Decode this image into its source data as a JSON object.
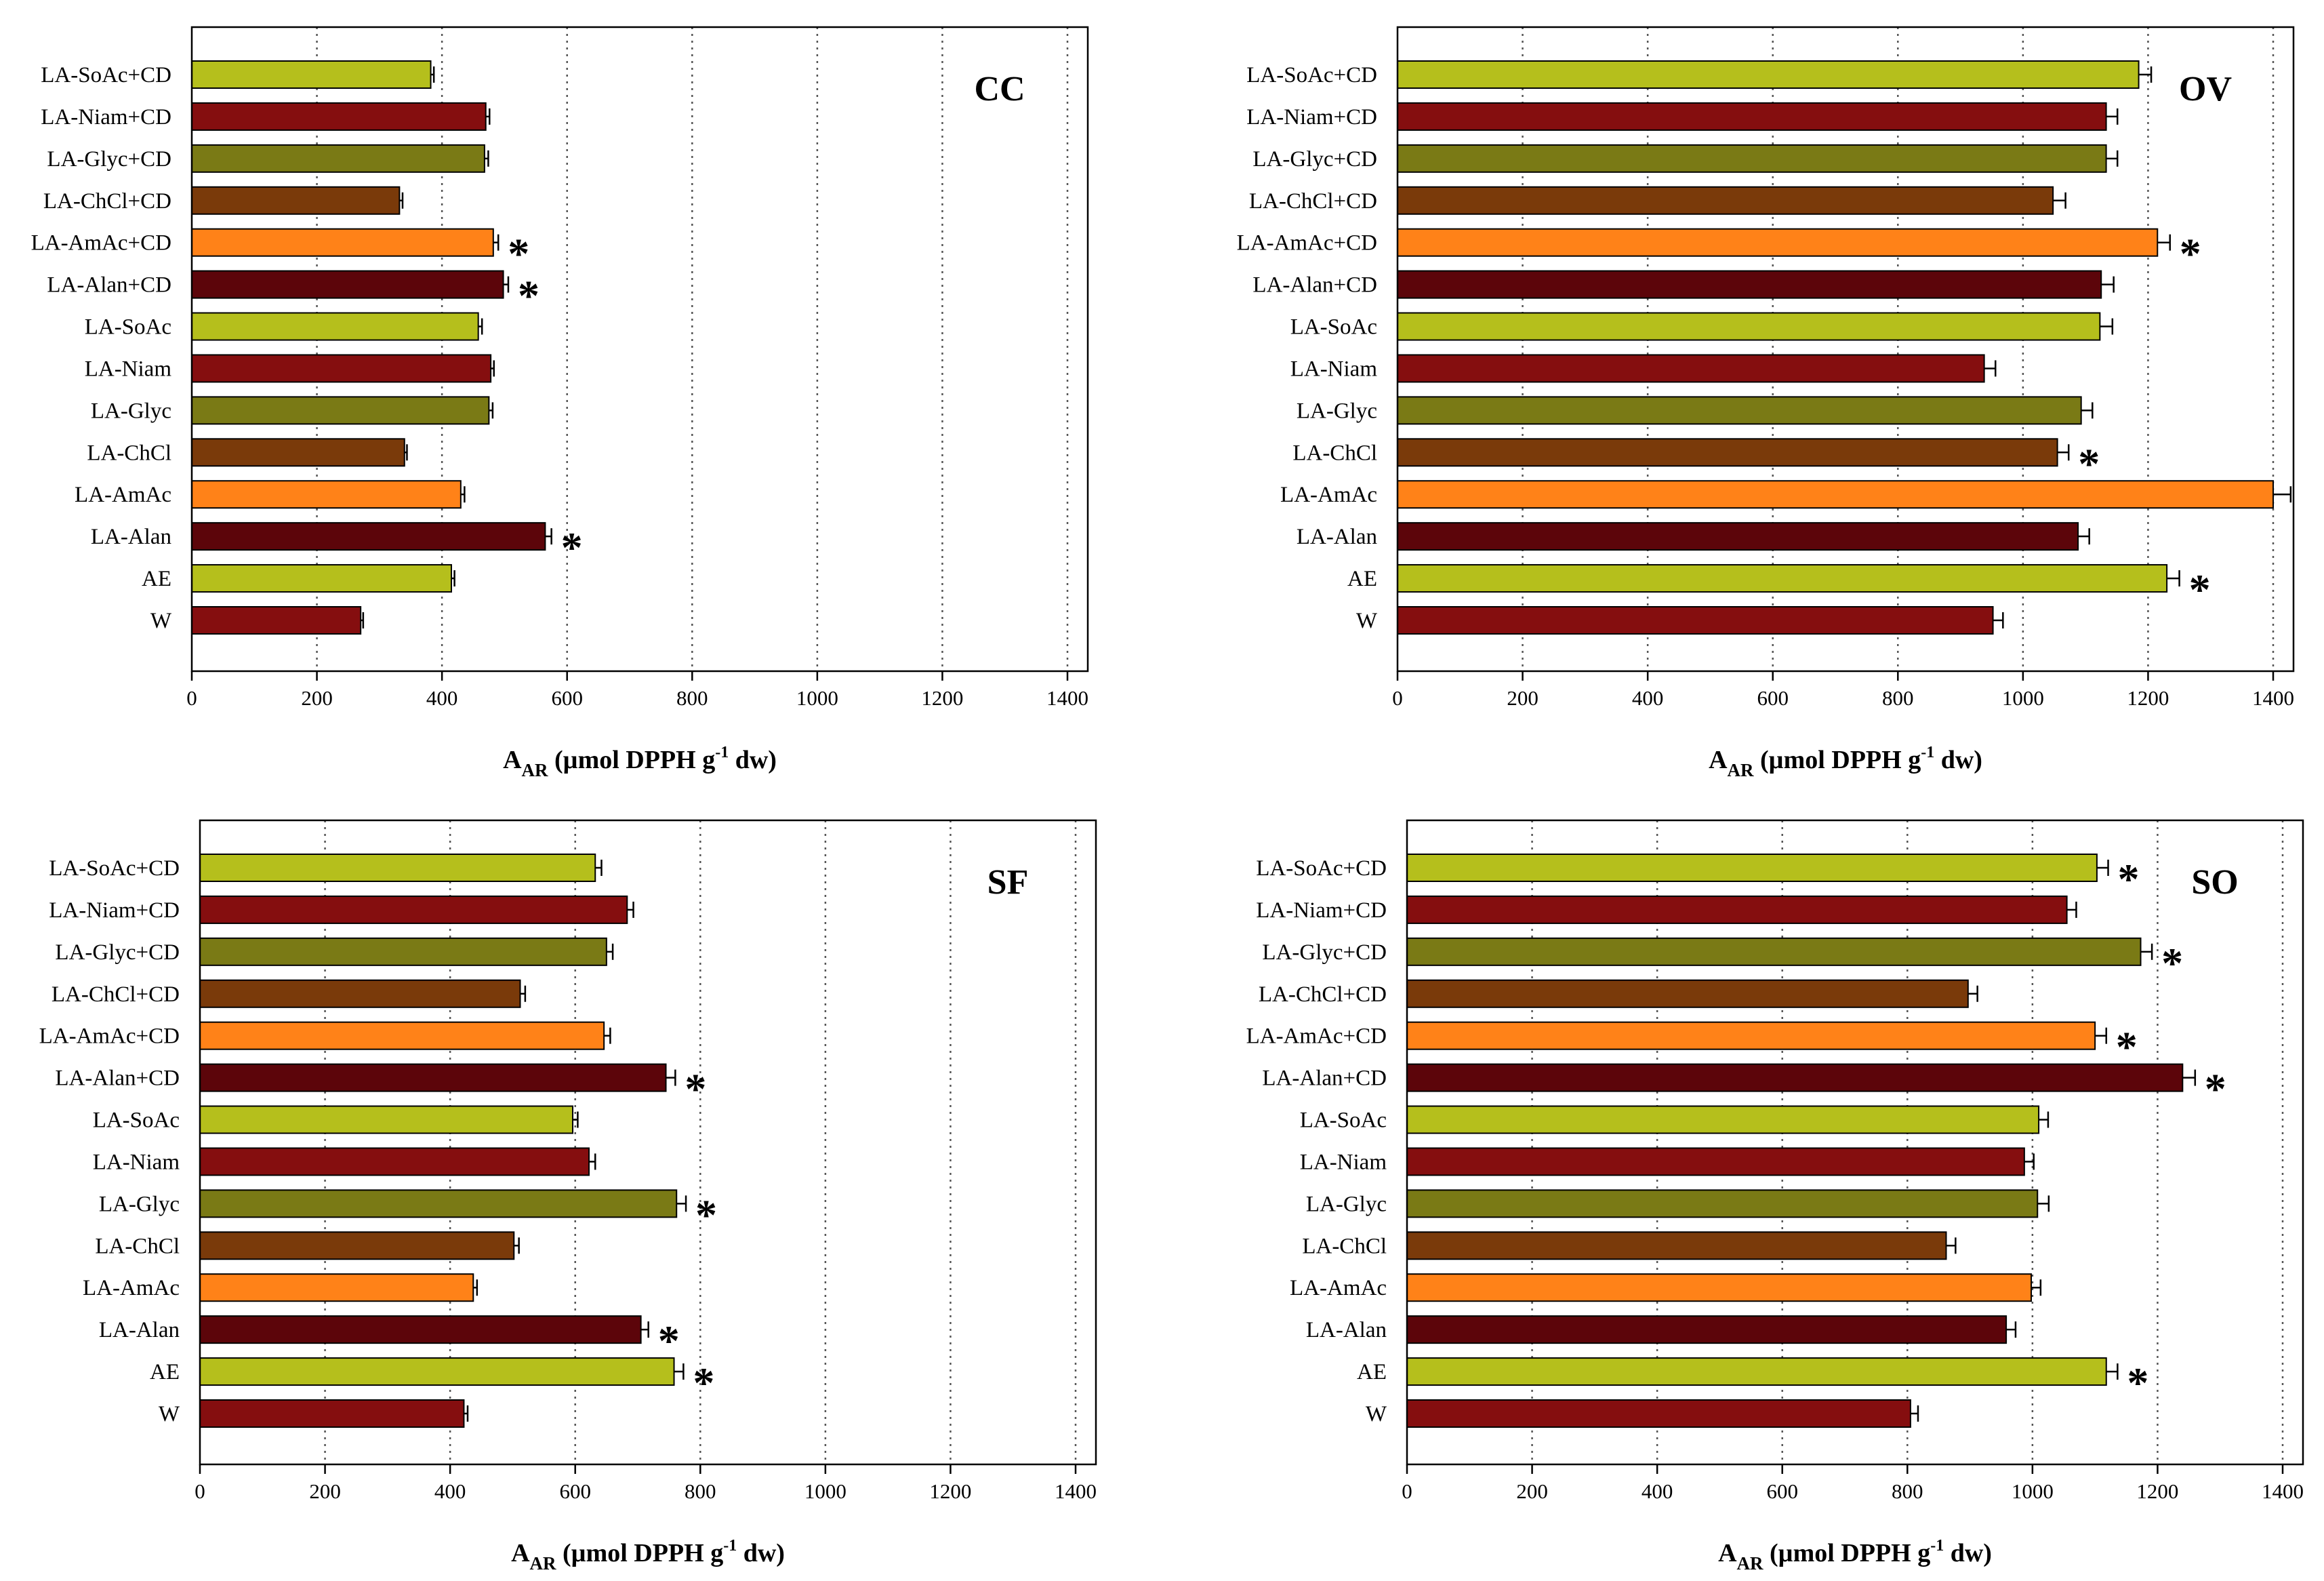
{
  "chart_data": [
    {
      "type": "bar",
      "orientation": "horizontal",
      "title": "CC",
      "xlabel": "A_AR (µmol DPPH g-1 dw)",
      "xlabel_parts": {
        "main": "A",
        "sub": "AR",
        "pre_sup": " (µmol DPPH g",
        "sup": "-1",
        "post": " dw)"
      },
      "xlim": [
        0,
        1400
      ],
      "xticks": [
        "0",
        "200",
        "400",
        "600",
        "800",
        "1000",
        "1200",
        "1400"
      ],
      "grid": "vertical dotted",
      "categories": [
        "LA-SoAc+CD",
        "LA-Niam+CD",
        "LA-Glyc+CD",
        "LA-ChCl+CD",
        "LA-AmAc+CD",
        "LA-Alan+CD",
        "LA-SoAc",
        "LA-Niam",
        "LA-Glyc",
        "LA-ChCl",
        "LA-AmAc",
        "LA-Alan",
        "AE",
        "W"
      ],
      "colors": [
        "#b5bf1c",
        "#850e0f",
        "#7a7a15",
        "#7a3a0a",
        "#ff8218",
        "#5c050a",
        "#b5bf1c",
        "#850e0f",
        "#7a7a15",
        "#7a3a0a",
        "#ff8218",
        "#5c050a",
        "#b5bf1c",
        "#850e0f"
      ],
      "values": [
        382,
        470,
        468,
        332,
        482,
        498,
        458,
        478,
        475,
        340,
        430,
        565,
        415,
        270
      ],
      "errors": [
        5,
        6,
        6,
        5,
        8,
        8,
        6,
        5,
        6,
        4,
        6,
        10,
        5,
        4
      ],
      "significant": [
        false,
        false,
        false,
        false,
        true,
        true,
        false,
        false,
        false,
        false,
        false,
        true,
        false,
        false
      ],
      "significance_mark": "*"
    },
    {
      "type": "bar",
      "orientation": "horizontal",
      "title": "OV",
      "xlabel": "A_AR (µmol DPPH g-1 dw)",
      "xlabel_parts": {
        "main": "A",
        "sub": "AR",
        "pre_sup": " (µmol DPPH g",
        "sup": "-1",
        "post": " dw)"
      },
      "xlim": [
        0,
        1400
      ],
      "xticks": [
        "0",
        "200",
        "400",
        "600",
        "800",
        "1000",
        "1200",
        "1400"
      ],
      "grid": "vertical dotted",
      "categories": [
        "LA-SoAc+CD",
        "LA-Niam+CD",
        "LA-Glyc+CD",
        "LA-ChCl+CD",
        "LA-AmAc+CD",
        "LA-Alan+CD",
        "LA-SoAc",
        "LA-Niam",
        "LA-Glyc",
        "LA-ChCl",
        "LA-AmAc",
        "LA-Alan",
        "AE",
        "W"
      ],
      "colors": [
        "#b5bf1c",
        "#850e0f",
        "#7a7a15",
        "#7a3a0a",
        "#ff8218",
        "#5c050a",
        "#b5bf1c",
        "#850e0f",
        "#7a7a15",
        "#7a3a0a",
        "#ff8218",
        "#5c050a",
        "#b5bf1c",
        "#850e0f"
      ],
      "values": [
        1185,
        1133,
        1133,
        1048,
        1215,
        1125,
        1123,
        938,
        1093,
        1055,
        1400,
        1088,
        1230,
        952
      ],
      "errors": [
        20,
        18,
        18,
        20,
        20,
        20,
        20,
        18,
        18,
        18,
        28,
        18,
        20,
        16
      ],
      "significant": [
        false,
        false,
        false,
        false,
        true,
        false,
        false,
        false,
        false,
        true,
        false,
        false,
        true,
        false
      ],
      "significance_mark": "*"
    },
    {
      "type": "bar",
      "orientation": "horizontal",
      "title": "SF",
      "xlabel": "A_AR (µmol DPPH g-1 dw)",
      "xlabel_parts": {
        "main": "A",
        "sub": "AR",
        "pre_sup": " (µmol DPPH g",
        "sup": "-1",
        "post": " dw)"
      },
      "xlim": [
        0,
        1400
      ],
      "xticks": [
        "0",
        "200",
        "400",
        "600",
        "800",
        "1000",
        "1200",
        "1400"
      ],
      "grid": "vertical dotted",
      "categories": [
        "LA-SoAc+CD",
        "LA-Niam+CD",
        "LA-Glyc+CD",
        "LA-ChCl+CD",
        "LA-AmAc+CD",
        "LA-Alan+CD",
        "LA-SoAc",
        "LA-Niam",
        "LA-Glyc",
        "LA-ChCl",
        "LA-AmAc",
        "LA-Alan",
        "AE",
        "W"
      ],
      "colors": [
        "#b5bf1c",
        "#850e0f",
        "#7a7a15",
        "#7a3a0a",
        "#ff8218",
        "#5c050a",
        "#b5bf1c",
        "#850e0f",
        "#7a7a15",
        "#7a3a0a",
        "#ff8218",
        "#5c050a",
        "#b5bf1c",
        "#850e0f"
      ],
      "values": [
        632,
        683,
        650,
        512,
        646,
        745,
        596,
        622,
        762,
        502,
        437,
        705,
        758,
        422
      ],
      "errors": [
        10,
        10,
        10,
        8,
        10,
        15,
        8,
        10,
        15,
        8,
        6,
        12,
        15,
        6
      ],
      "significant": [
        false,
        false,
        false,
        false,
        false,
        true,
        false,
        false,
        true,
        false,
        false,
        true,
        true,
        false
      ],
      "significance_mark": "*"
    },
    {
      "type": "bar",
      "orientation": "horizontal",
      "title": "SO",
      "xlabel": "A_AR (µmol DPPH g-1 dw)",
      "xlabel_parts": {
        "main": "A",
        "sub": "AR",
        "pre_sup": " (µmol DPPH g",
        "sup": "-1",
        "post": " dw)"
      },
      "xlim": [
        0,
        1400
      ],
      "xticks": [
        "0",
        "200",
        "400",
        "600",
        "800",
        "1000",
        "1200",
        "1400"
      ],
      "grid": "vertical dotted",
      "categories": [
        "LA-SoAc+CD",
        "LA-Niam+CD",
        "LA-Glyc+CD",
        "LA-ChCl+CD",
        "LA-AmAc+CD",
        "LA-Alan+CD",
        "LA-SoAc",
        "LA-Niam",
        "LA-Glyc",
        "LA-ChCl",
        "LA-AmAc",
        "LA-Alan",
        "AE",
        "W"
      ],
      "colors": [
        "#b5bf1c",
        "#850e0f",
        "#7a7a15",
        "#7a3a0a",
        "#ff8218",
        "#5c050a",
        "#b5bf1c",
        "#850e0f",
        "#7a7a15",
        "#7a3a0a",
        "#ff8218",
        "#5c050a",
        "#b5bf1c",
        "#850e0f"
      ],
      "values": [
        1103,
        1055,
        1173,
        897,
        1100,
        1240,
        1010,
        987,
        1008,
        862,
        998,
        958,
        1118,
        805
      ],
      "errors": [
        18,
        15,
        18,
        15,
        18,
        20,
        15,
        15,
        18,
        15,
        15,
        15,
        18,
        12
      ],
      "significant": [
        true,
        false,
        true,
        false,
        true,
        true,
        false,
        false,
        false,
        false,
        false,
        false,
        true,
        false
      ],
      "significance_mark": "*"
    }
  ]
}
